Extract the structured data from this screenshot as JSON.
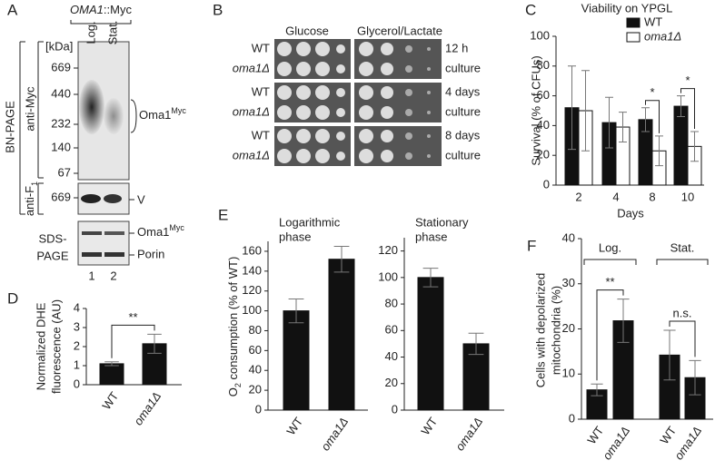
{
  "panels": [
    "A",
    "B",
    "C",
    "D",
    "E",
    "F"
  ],
  "panel_a": {
    "construct": {
      "gene": "OMA1",
      "suffix": "::Myc"
    },
    "lanes_top": [
      "Log.",
      "Stat."
    ],
    "kda": "[kDa]",
    "markers": [
      "669",
      "440",
      "232",
      "140",
      "67"
    ],
    "bn_page": "BN-PAGE",
    "anti_myc": "anti-Myc",
    "oma1_band": {
      "name": "Oma1",
      "sup": "Myc"
    },
    "anti_f1": {
      "name": "anti-F",
      "sub": "1"
    },
    "f1_marker": "669",
    "v_band": "V",
    "sds_page": [
      "SDS-",
      "PAGE"
    ],
    "sds_band": {
      "name": "Oma1",
      "sup": "Myc"
    },
    "porin": "Porin",
    "lane_numbers": [
      "1",
      "2"
    ]
  },
  "panel_b": {
    "headers": [
      "Glucose",
      "Glycerol/Lactate"
    ],
    "rows": [
      {
        "strains": [
          "WT",
          "oma1Δ"
        ],
        "time": [
          "12 h",
          "culture"
        ]
      },
      {
        "strains": [
          "WT",
          "oma1Δ"
        ],
        "time": [
          "4 days",
          "culture"
        ]
      },
      {
        "strains": [
          "WT",
          "oma1Δ"
        ],
        "time": [
          "8 days",
          "culture"
        ]
      }
    ]
  },
  "chart_data": [
    {
      "type": "bar",
      "title": "Viability on YPGL",
      "y_label": "Survival (% of CFUs)",
      "x_label": "Days",
      "categories": [
        "2",
        "4",
        "8",
        "10"
      ],
      "series": [
        {
          "name": "WT",
          "color": "#111111",
          "values": [
            52,
            42,
            44,
            53
          ],
          "errors": [
            28,
            17,
            8,
            7
          ]
        },
        {
          "name": "oma1Δ",
          "color": "#ffffff",
          "values": [
            50,
            39,
            23,
            26
          ],
          "errors": [
            27,
            10,
            10,
            10
          ]
        }
      ],
      "ylim": [
        0,
        100
      ],
      "yticks": [
        0,
        20,
        40,
        60,
        80,
        100
      ],
      "significance": [
        "*",
        "*"
      ]
    },
    {
      "type": "bar",
      "y_label": [
        "Normalized DHE",
        "fluorescence (AU)"
      ],
      "categories": [
        "WT",
        "oma1Δ"
      ],
      "values": [
        1.1,
        2.15
      ],
      "errors": [
        0.1,
        0.5
      ],
      "color": "#111111",
      "ylim": [
        0,
        4
      ],
      "yticks": [
        0,
        1,
        2,
        3,
        4
      ],
      "significance": [
        "**"
      ]
    },
    {
      "type": "bar",
      "y_label": [
        "O",
        "2",
        " consumption (% of WT)"
      ],
      "subtitle": [
        "Logarithmic",
        "phase"
      ],
      "categories": [
        "WT",
        "oma1Δ"
      ],
      "values": [
        100,
        152
      ],
      "errors": [
        12,
        13
      ],
      "color": "#111111",
      "ylim": [
        0,
        170
      ],
      "yticks": [
        0,
        20,
        40,
        60,
        80,
        100,
        120,
        140,
        160
      ]
    },
    {
      "type": "bar",
      "subtitle": [
        "Stationary",
        "phase"
      ],
      "categories": [
        "WT",
        "oma1Δ"
      ],
      "values": [
        100,
        50
      ],
      "errors": [
        7,
        8
      ],
      "color": "#111111",
      "ylim": [
        0,
        130
      ],
      "yticks": [
        0,
        20,
        40,
        60,
        80,
        100,
        120
      ]
    },
    {
      "type": "bar",
      "y_label": [
        "Cells with depolarized",
        "mitochondria (%)"
      ],
      "categories": [
        "WT",
        "oma1Δ",
        "WT",
        "oma1Δ"
      ],
      "groups": [
        "Log.",
        "Stat."
      ],
      "values": [
        6.5,
        21.8,
        14.2,
        9.2
      ],
      "errors": [
        1.3,
        4.8,
        5.5,
        3.8
      ],
      "color": "#111111",
      "ylim": [
        0,
        40
      ],
      "yticks": [
        0,
        10,
        20,
        30,
        40
      ],
      "significance": [
        "**",
        "n.s."
      ]
    }
  ]
}
